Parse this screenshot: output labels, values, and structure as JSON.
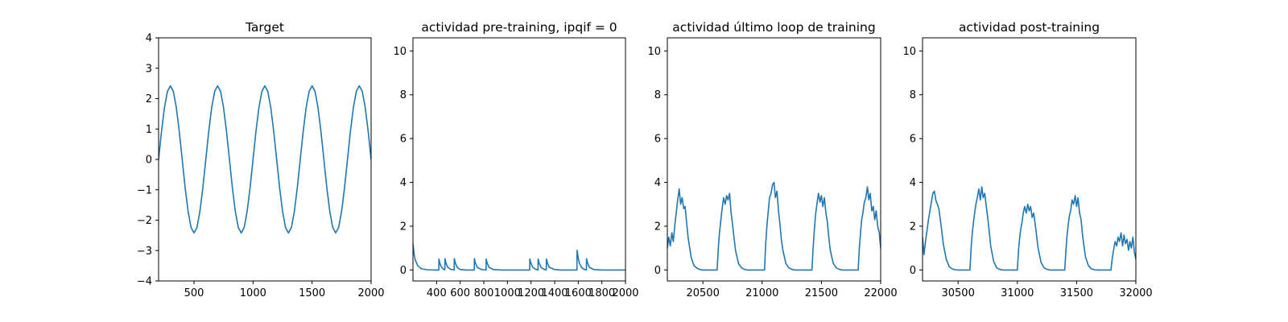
{
  "figure": {
    "background": "#ffffff",
    "line_color": "#1f77b4"
  },
  "chart_data": [
    {
      "type": "line",
      "title": "Target",
      "xlabel": "",
      "ylabel": "",
      "xlim": [
        200,
        2000
      ],
      "ylim": [
        -4,
        4
      ],
      "xticks": [
        500,
        1000,
        1500,
        2000
      ],
      "yticks": [
        -4,
        -3,
        -2,
        -1,
        0,
        1,
        2,
        3,
        4
      ],
      "ytick_labels": [
        "−4",
        "−3",
        "−2",
        "−1",
        "0",
        "1",
        "2",
        "3",
        "4"
      ],
      "grid": false,
      "series": [
        {
          "x": [
            200,
            225,
            250,
            275,
            300,
            325,
            350,
            375,
            400,
            425,
            450,
            475,
            500,
            525,
            550,
            575,
            600,
            625,
            650,
            675,
            700,
            725,
            750,
            775,
            800,
            825,
            850,
            875,
            900,
            925,
            950,
            975,
            1000,
            1025,
            1050,
            1075,
            1100,
            1125,
            1150,
            1175,
            1200,
            1225,
            1250,
            1275,
            1300,
            1325,
            1350,
            1375,
            1400,
            1425,
            1450,
            1475,
            1500,
            1525,
            1550,
            1575,
            1600,
            1625,
            1650,
            1675,
            1700,
            1725,
            1750,
            1775,
            1800,
            1825,
            1850,
            1875,
            1900,
            1925,
            1950,
            1975,
            2000
          ],
          "y": [
            0.0,
            0.93,
            1.71,
            2.24,
            2.42,
            2.24,
            1.71,
            0.93,
            0.0,
            -0.93,
            -1.71,
            -2.24,
            -2.42,
            -2.24,
            -1.71,
            -0.93,
            0.0,
            0.93,
            1.71,
            2.24,
            2.42,
            2.24,
            1.71,
            0.93,
            0.0,
            -0.93,
            -1.71,
            -2.24,
            -2.42,
            -2.24,
            -1.71,
            -0.93,
            0.0,
            0.93,
            1.71,
            2.24,
            2.42,
            2.24,
            1.71,
            0.93,
            0.0,
            -0.93,
            -1.71,
            -2.24,
            -2.42,
            -2.24,
            -1.71,
            -0.93,
            0.0,
            0.93,
            1.71,
            2.24,
            2.42,
            2.24,
            1.71,
            0.93,
            0.0,
            -0.93,
            -1.71,
            -2.24,
            -2.42,
            -2.24,
            -1.71,
            -0.93,
            0.0,
            0.93,
            1.71,
            2.24,
            2.42,
            2.24,
            1.71,
            0.93,
            0.0
          ]
        }
      ]
    },
    {
      "type": "line",
      "title": "actividad pre-training, ipqif = 0",
      "xlabel": "",
      "ylabel": "",
      "xlim": [
        200,
        2000
      ],
      "ylim": [
        -0.5,
        10.6
      ],
      "xticks": [
        400,
        600,
        800,
        1000,
        1200,
        1400,
        1600,
        1800,
        2000
      ],
      "yticks": [
        0,
        2,
        4,
        6,
        8,
        10
      ],
      "grid": false,
      "series": [
        {
          "x": [
            200,
            210,
            220,
            240,
            270,
            320,
            380,
            419,
            420,
            428,
            440,
            460,
            470,
            471,
            480,
            495,
            520,
            540,
            549,
            550,
            560,
            575,
            600,
            650,
            700,
            719,
            720,
            730,
            745,
            780,
            800,
            819,
            820,
            830,
            845,
            880,
            950,
            1050,
            1150,
            1189,
            1190,
            1200,
            1215,
            1240,
            1259,
            1260,
            1270,
            1285,
            1310,
            1329,
            1330,
            1340,
            1355,
            1400,
            1450,
            1500,
            1560,
            1589,
            1590,
            1600,
            1610,
            1630,
            1650,
            1669,
            1670,
            1680,
            1695,
            1730,
            1800,
            1900,
            2000
          ],
          "y": [
            1.2,
            0.7,
            0.45,
            0.2,
            0.06,
            0.01,
            0.0,
            0.0,
            0.5,
            0.3,
            0.14,
            0.03,
            0.01,
            0.52,
            0.3,
            0.12,
            0.03,
            0.01,
            0.0,
            0.52,
            0.3,
            0.12,
            0.02,
            0.0,
            0.0,
            0.0,
            0.52,
            0.3,
            0.12,
            0.02,
            0.01,
            0.0,
            0.5,
            0.3,
            0.12,
            0.02,
            0.0,
            0.0,
            0.0,
            0.0,
            0.5,
            0.3,
            0.12,
            0.03,
            0.0,
            0.5,
            0.3,
            0.12,
            0.03,
            0.0,
            0.5,
            0.3,
            0.12,
            0.02,
            0.0,
            0.0,
            0.0,
            0.0,
            0.9,
            0.55,
            0.3,
            0.1,
            0.03,
            0.0,
            0.52,
            0.3,
            0.12,
            0.02,
            0.0,
            0.0,
            0.0
          ]
        }
      ]
    },
    {
      "type": "line",
      "title": "actividad último loop de training",
      "xlabel": "",
      "ylabel": "",
      "xlim": [
        20200,
        22000
      ],
      "ylim": [
        -0.5,
        10.6
      ],
      "xticks": [
        20500,
        21000,
        21500,
        22000
      ],
      "yticks": [
        0,
        2,
        4,
        6,
        8,
        10
      ],
      "grid": false,
      "series": [
        {
          "x": [
            20200,
            20212,
            20225,
            20238,
            20250,
            20262,
            20275,
            20287,
            20300,
            20312,
            20325,
            20338,
            20350,
            20362,
            20375,
            20400,
            20425,
            20450,
            20475,
            20500,
            20550,
            20620,
            20630,
            20640,
            20650,
            20662,
            20675,
            20688,
            20700,
            20712,
            20725,
            20738,
            20750,
            20762,
            20775,
            20800,
            20825,
            20850,
            20875,
            20900,
            20950,
            21020,
            21030,
            21040,
            21050,
            21062,
            21075,
            21088,
            21100,
            21112,
            21125,
            21138,
            21150,
            21162,
            21175,
            21200,
            21225,
            21250,
            21275,
            21300,
            21350,
            21420,
            21430,
            21440,
            21450,
            21462,
            21475,
            21488,
            21500,
            21512,
            21525,
            21538,
            21550,
            21562,
            21575,
            21600,
            21625,
            21650,
            21675,
            21700,
            21750,
            21810,
            21820,
            21830,
            21840,
            21850,
            21862,
            21875,
            21888,
            21900,
            21912,
            21925,
            21938,
            21950,
            21962,
            21975,
            21988,
            22000
          ],
          "y": [
            1.0,
            1.5,
            1.1,
            1.7,
            1.3,
            2.0,
            2.6,
            3.2,
            3.7,
            3.0,
            3.3,
            2.8,
            2.9,
            2.2,
            1.5,
            0.6,
            0.2,
            0.08,
            0.02,
            0.0,
            0.0,
            0.0,
            1.0,
            1.7,
            2.2,
            2.8,
            3.3,
            3.0,
            3.4,
            3.2,
            3.5,
            2.6,
            2.1,
            1.5,
            0.9,
            0.3,
            0.1,
            0.03,
            0.0,
            0.0,
            0.0,
            0.0,
            1.2,
            2.0,
            2.6,
            3.3,
            3.5,
            3.9,
            4.0,
            3.3,
            3.6,
            2.7,
            2.1,
            1.4,
            0.9,
            0.3,
            0.1,
            0.03,
            0.0,
            0.0,
            0.0,
            0.0,
            1.0,
            1.8,
            2.5,
            3.0,
            3.5,
            3.1,
            3.4,
            2.9,
            3.3,
            2.6,
            2.2,
            1.5,
            0.9,
            0.3,
            0.1,
            0.03,
            0.0,
            0.0,
            0.0,
            0.0,
            1.0,
            1.7,
            2.3,
            2.6,
            3.1,
            3.3,
            3.8,
            3.2,
            3.5,
            2.7,
            2.9,
            2.3,
            2.7,
            2.0,
            1.7,
            1.0
          ]
        }
      ]
    },
    {
      "type": "line",
      "title": "actividad post-training",
      "xlabel": "",
      "ylabel": "",
      "xlim": [
        30200,
        32000
      ],
      "ylim": [
        -0.5,
        10.6
      ],
      "xticks": [
        30500,
        31000,
        31500,
        32000
      ],
      "yticks": [
        0,
        2,
        4,
        6,
        8,
        10
      ],
      "grid": false,
      "series": [
        {
          "x": [
            30200,
            30212,
            30225,
            30238,
            30250,
            30262,
            30275,
            30287,
            30300,
            30312,
            30325,
            30338,
            30350,
            30362,
            30375,
            30400,
            30425,
            30450,
            30475,
            30500,
            30550,
            30600,
            30610,
            30620,
            30630,
            30640,
            30650,
            30662,
            30675,
            30688,
            30700,
            30712,
            30725,
            30738,
            30750,
            30762,
            30775,
            30800,
            30825,
            30850,
            30875,
            30900,
            30950,
            31000,
            31010,
            31020,
            31030,
            31040,
            31050,
            31062,
            31075,
            31088,
            31100,
            31112,
            31125,
            31138,
            31150,
            31162,
            31175,
            31200,
            31225,
            31250,
            31275,
            31300,
            31350,
            31400,
            31410,
            31420,
            31430,
            31440,
            31450,
            31462,
            31475,
            31488,
            31500,
            31512,
            31525,
            31538,
            31550,
            31562,
            31575,
            31600,
            31625,
            31650,
            31675,
            31700,
            31750,
            31790,
            31800,
            31812,
            31825,
            31838,
            31850,
            31862,
            31875,
            31888,
            31900,
            31912,
            31925,
            31938,
            31950,
            31962,
            31975,
            31988,
            32000
          ],
          "y": [
            1.5,
            0.7,
            1.3,
            1.8,
            2.3,
            2.7,
            3.1,
            3.5,
            3.6,
            3.2,
            3.0,
            2.8,
            2.3,
            1.8,
            1.2,
            0.5,
            0.15,
            0.05,
            0.01,
            0.0,
            0.0,
            0.0,
            1.0,
            1.7,
            2.2,
            2.6,
            3.0,
            3.3,
            3.7,
            3.2,
            3.8,
            3.3,
            3.5,
            2.9,
            2.4,
            1.8,
            1.1,
            0.4,
            0.1,
            0.03,
            0.0,
            0.0,
            0.0,
            0.0,
            0.9,
            1.5,
            1.9,
            2.2,
            2.6,
            2.9,
            2.6,
            3.0,
            2.7,
            2.9,
            2.4,
            2.6,
            2.1,
            1.6,
            1.0,
            0.35,
            0.1,
            0.03,
            0.0,
            0.0,
            0.0,
            0.0,
            0.9,
            1.6,
            2.1,
            2.5,
            2.7,
            3.2,
            3.0,
            3.4,
            2.9,
            3.3,
            2.6,
            2.3,
            1.6,
            1.1,
            0.6,
            0.2,
            0.05,
            0.01,
            0.0,
            0.0,
            0.0,
            0.0,
            0.5,
            0.9,
            1.3,
            1.1,
            1.5,
            1.3,
            1.7,
            1.1,
            1.6,
            1.2,
            1.4,
            0.9,
            1.3,
            1.0,
            1.5,
            0.8,
            0.5
          ]
        }
      ]
    }
  ]
}
